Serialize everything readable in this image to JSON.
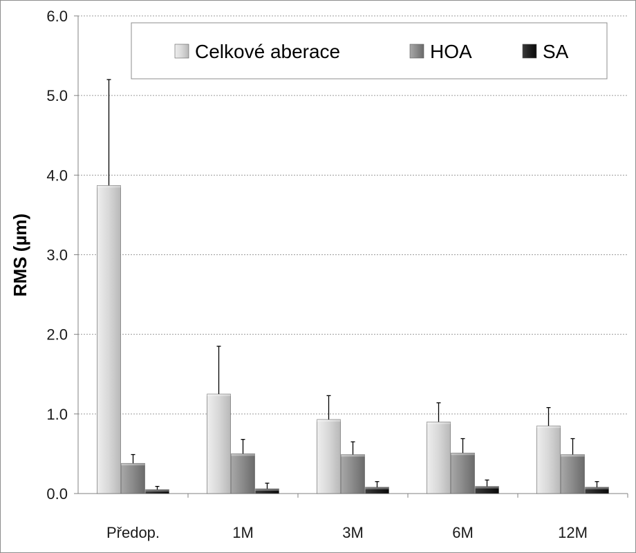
{
  "chart_data": {
    "type": "bar",
    "title": "",
    "xlabel": "",
    "ylabel": "RMS (µm)",
    "ylim": [
      0,
      6
    ],
    "yticks": [
      "0.0",
      "1.0",
      "2.0",
      "3.0",
      "4.0",
      "5.0",
      "6.0"
    ],
    "grid": "horizontal dotted",
    "legend_position": "top",
    "error_bars": "upper only",
    "categories": [
      "Předop.",
      "1M",
      "3M",
      "6M",
      "12M"
    ],
    "series": [
      {
        "name": "Celkové aberace",
        "color": "#d4d4d4",
        "values": [
          3.87,
          1.25,
          0.93,
          0.9,
          0.85
        ],
        "errors": [
          1.33,
          0.6,
          0.3,
          0.24,
          0.23
        ]
      },
      {
        "name": "HOA",
        "color": "#8a8a8a",
        "values": [
          0.38,
          0.5,
          0.49,
          0.51,
          0.49
        ],
        "errors": [
          0.11,
          0.18,
          0.16,
          0.18,
          0.2
        ]
      },
      {
        "name": "SA",
        "color": "#1f1f1f",
        "values": [
          0.05,
          0.06,
          0.08,
          0.09,
          0.08
        ],
        "errors": [
          0.04,
          0.07,
          0.07,
          0.08,
          0.07
        ]
      }
    ]
  }
}
